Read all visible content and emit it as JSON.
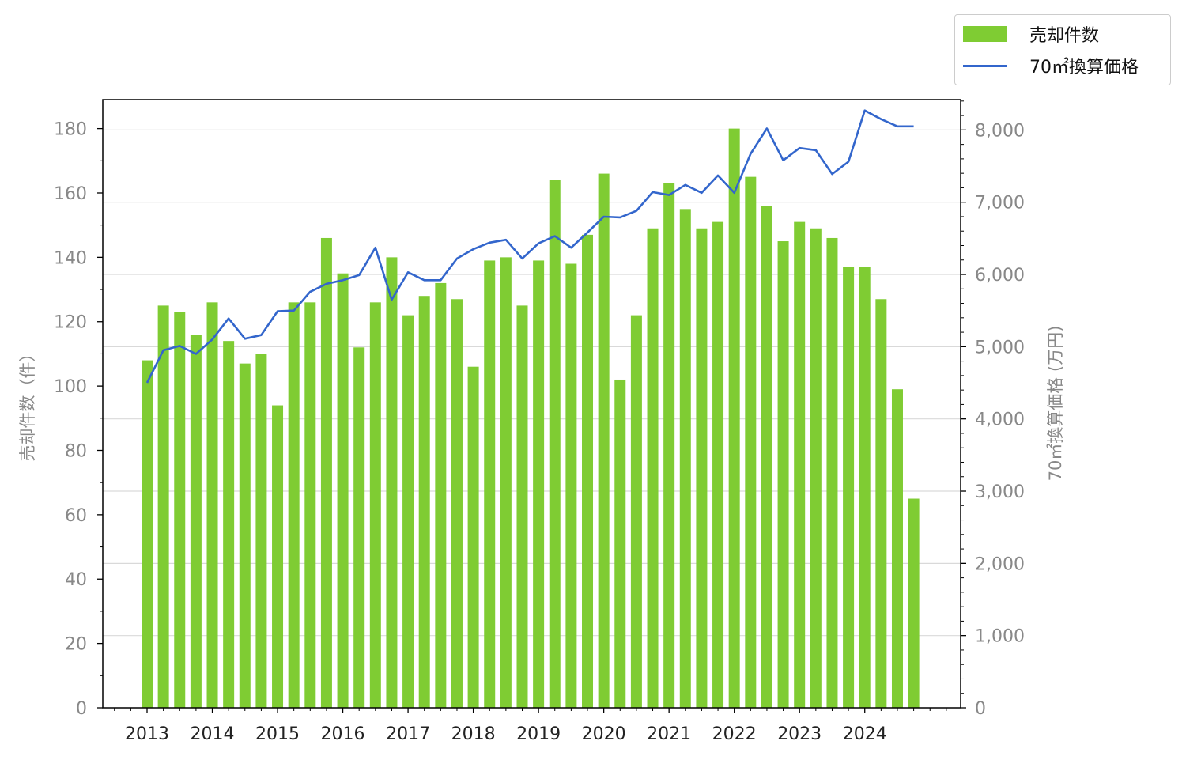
{
  "legend": {
    "bar_label": "売却件数",
    "line_label": "70㎡換算価格"
  },
  "colors": {
    "bar": "#7fcc33",
    "line": "#3366cc",
    "grid": "#d9d9d9",
    "axis": "#000000"
  },
  "chart_data": {
    "type": "bar",
    "xlabel": "",
    "ylabel_left": "売却件数（件）",
    "ylabel_right": "70㎡換算価格 (万円)",
    "year_labels": [
      "2013",
      "2014",
      "2015",
      "2016",
      "2017",
      "2018",
      "2019",
      "2020",
      "2021",
      "2022",
      "2023",
      "2024"
    ],
    "left_ylim": [
      0,
      189
    ],
    "left_ticks": [
      0,
      20,
      40,
      60,
      80,
      100,
      120,
      140,
      160,
      180
    ],
    "right_ylim": [
      0,
      8420
    ],
    "right_ticks": [
      0,
      1000,
      2000,
      3000,
      4000,
      5000,
      6000,
      7000,
      8000
    ],
    "right_tick_labels": [
      "0",
      "1,000",
      "2,000",
      "3,000",
      "4,000",
      "5,000",
      "6,000",
      "7,000",
      "8,000"
    ],
    "grid": "horizontal lines at right-axis ticks",
    "legend_position": "top-right, outside plot",
    "x": [
      "2013Q1",
      "2013Q2",
      "2013Q3",
      "2013Q4",
      "2014Q1",
      "2014Q2",
      "2014Q3",
      "2014Q4",
      "2015Q1",
      "2015Q2",
      "2015Q3",
      "2015Q4",
      "2016Q1",
      "2016Q2",
      "2016Q3",
      "2016Q4",
      "2017Q1",
      "2017Q2",
      "2017Q3",
      "2017Q4",
      "2018Q1",
      "2018Q2",
      "2018Q3",
      "2018Q4",
      "2019Q1",
      "2019Q2",
      "2019Q3",
      "2019Q4",
      "2020Q1",
      "2020Q2",
      "2020Q3",
      "2020Q4",
      "2021Q1",
      "2021Q2",
      "2021Q3",
      "2021Q4",
      "2022Q1",
      "2022Q2",
      "2022Q3",
      "2022Q4",
      "2023Q1",
      "2023Q2",
      "2023Q3",
      "2023Q4",
      "2024Q1",
      "2024Q2",
      "2024Q3",
      "2024Q4"
    ],
    "series": [
      {
        "name": "売却件数",
        "axis": "left",
        "kind": "bar",
        "values": [
          108,
          125,
          123,
          116,
          126,
          114,
          107,
          110,
          94,
          126,
          126,
          146,
          135,
          112,
          126,
          140,
          122,
          128,
          132,
          127,
          106,
          139,
          140,
          125,
          139,
          164,
          138,
          147,
          166,
          102,
          122,
          149,
          163,
          155,
          149,
          151,
          180,
          165,
          156,
          145,
          151,
          149,
          146,
          137,
          137,
          127,
          99,
          65
        ]
      },
      {
        "name": "70㎡換算価格",
        "axis": "right",
        "kind": "line",
        "values": [
          4500,
          4950,
          5010,
          4900,
          5100,
          5390,
          5110,
          5160,
          5490,
          5500,
          5760,
          5870,
          5920,
          5990,
          6370,
          5650,
          6030,
          5920,
          5920,
          6220,
          6350,
          6440,
          6480,
          6220,
          6430,
          6530,
          6370,
          6580,
          6800,
          6790,
          6880,
          7140,
          7100,
          7240,
          7130,
          7370,
          7130,
          7670,
          8020,
          7580,
          7750,
          7720,
          7390,
          7560,
          8270,
          8150,
          8050,
          8050
        ]
      }
    ]
  }
}
